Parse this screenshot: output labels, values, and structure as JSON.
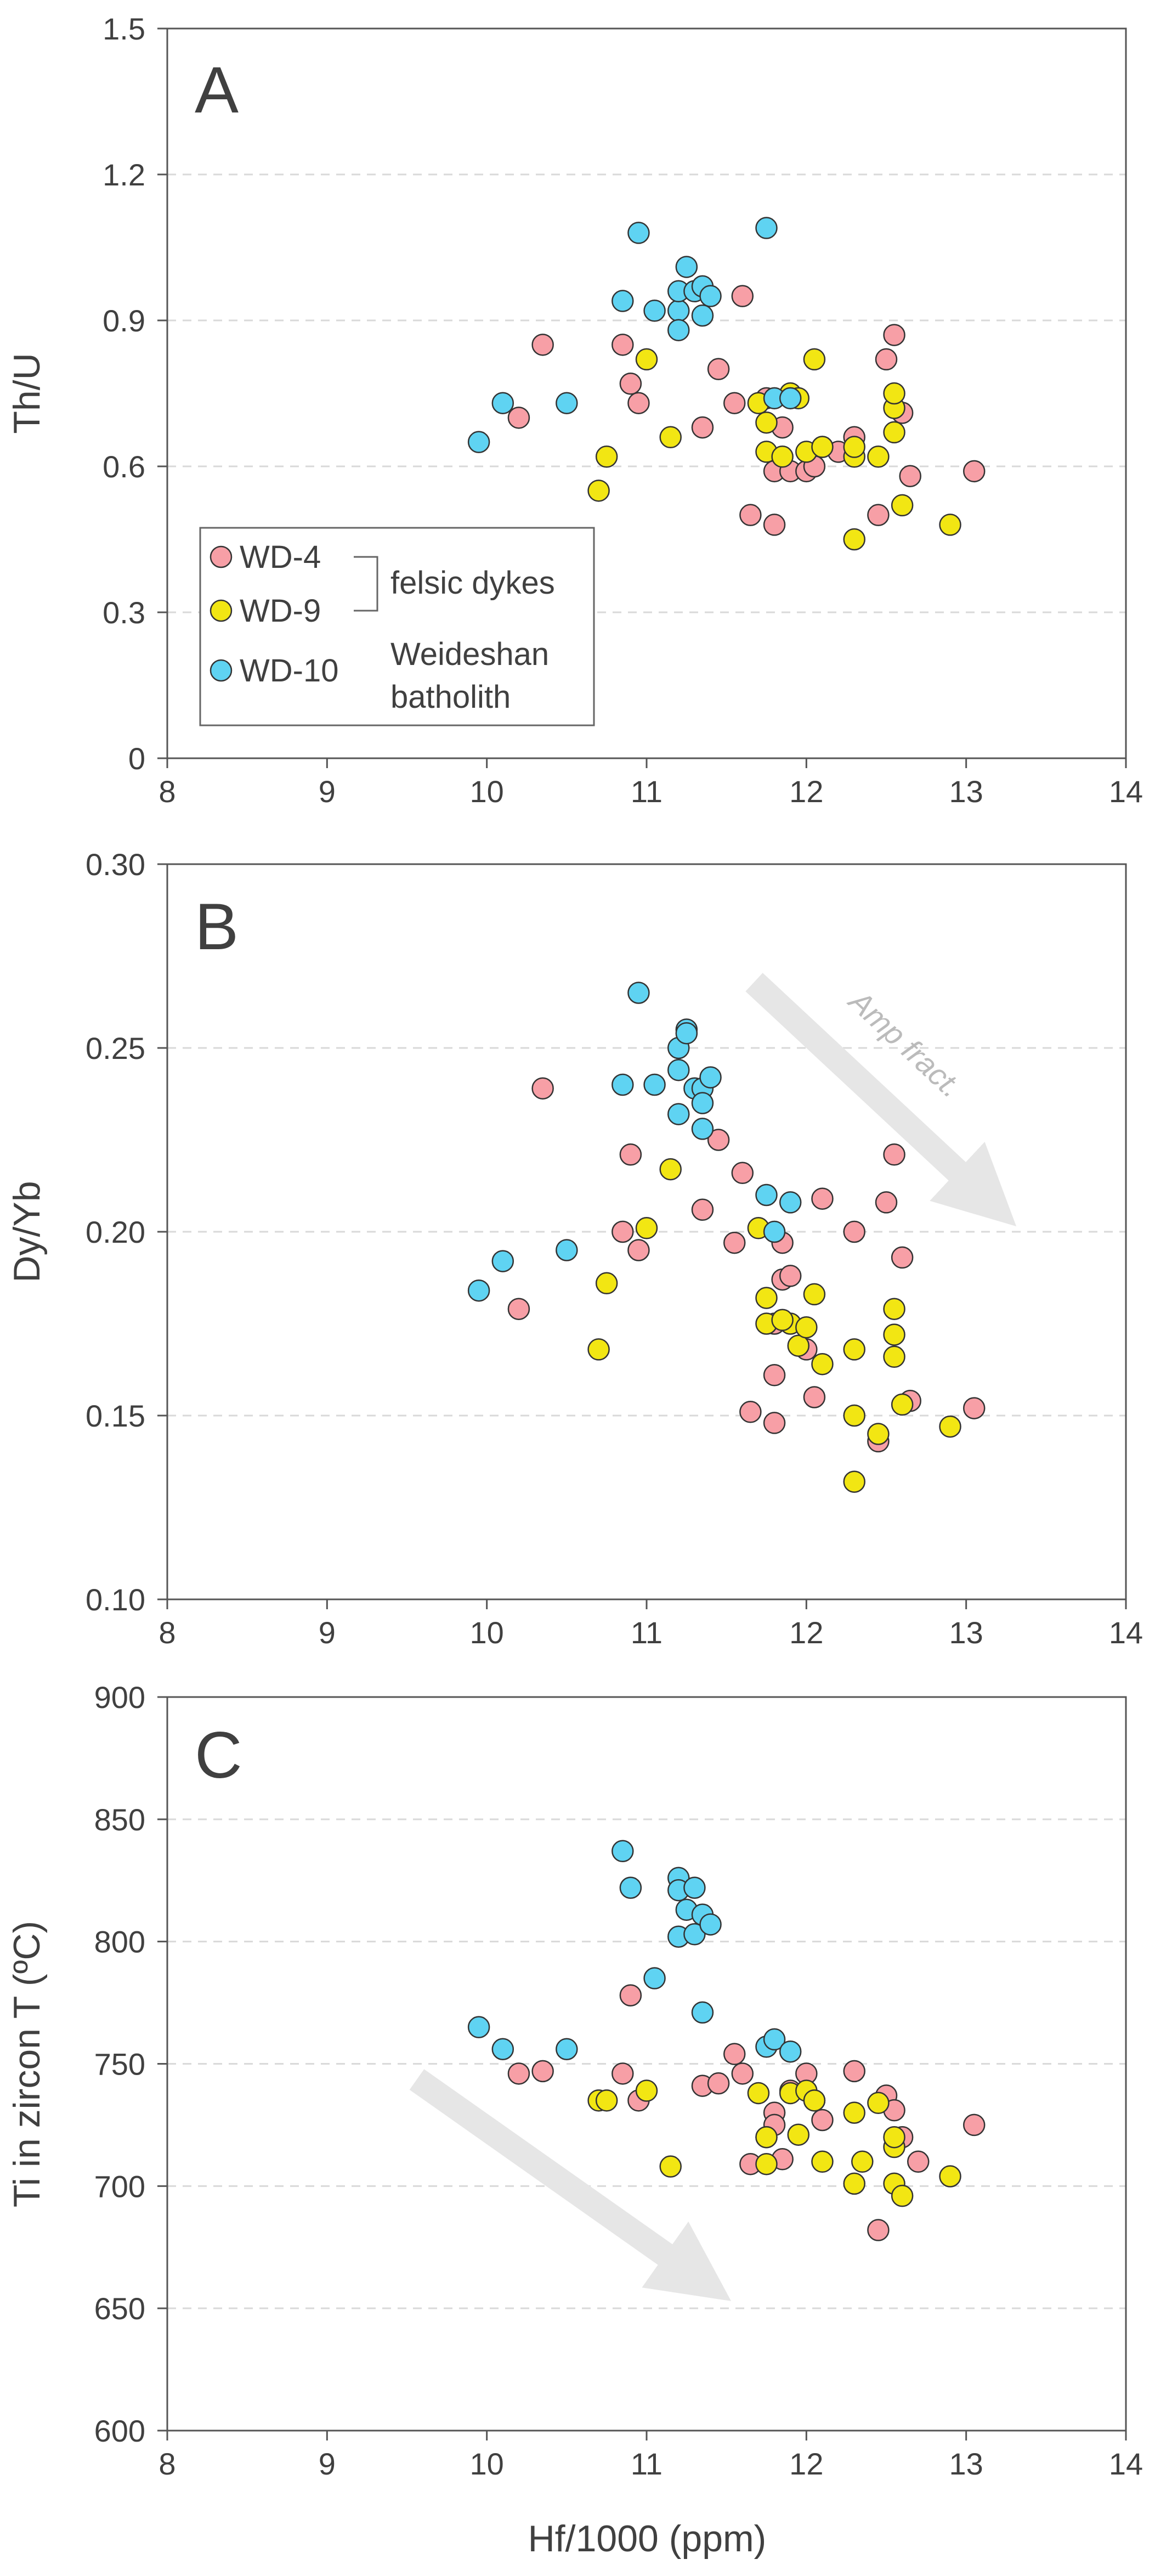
{
  "colors": {
    "WD-4": "#f79fa6",
    "WD-9": "#f2e613",
    "WD-10": "#5fd3f2",
    "frame": "#555555",
    "grid": "#d9d9d9",
    "arrow": "#e6e6e6"
  },
  "legend": {
    "wd4": "WD-4",
    "wd9": "WD-9",
    "wd10": "WD-10",
    "felsic": "felsic dykes",
    "weideshan_1": "Weideshan",
    "weideshan_2": "batholith"
  },
  "chart_data": [
    {
      "type": "scatter",
      "panel": "A",
      "ylabel": "Th/U",
      "xlim": [
        8,
        14
      ],
      "ylim": [
        0,
        1.5
      ],
      "xticks": [
        "8",
        "9",
        "10",
        "11",
        "12",
        "13",
        "14"
      ],
      "yticks": [
        "0",
        "0.3",
        "0.6",
        "0.9",
        "1.2",
        "1.5"
      ],
      "grid_y": [
        0.3,
        0.6,
        0.9,
        1.2
      ],
      "series": [
        {
          "name": "WD-4",
          "points": [
            [
              10.2,
              0.7
            ],
            [
              10.35,
              0.85
            ],
            [
              10.85,
              0.85
            ],
            [
              10.9,
              0.77
            ],
            [
              10.95,
              0.73
            ],
            [
              11.35,
              0.68
            ],
            [
              11.45,
              0.8
            ],
            [
              11.55,
              0.73
            ],
            [
              11.6,
              0.95
            ],
            [
              11.65,
              0.5
            ],
            [
              11.8,
              0.48
            ],
            [
              11.8,
              0.59
            ],
            [
              11.85,
              0.68
            ],
            [
              11.9,
              0.59
            ],
            [
              12.0,
              0.59
            ],
            [
              12.05,
              0.6
            ],
            [
              12.1,
              0.64
            ],
            [
              12.2,
              0.63
            ],
            [
              12.3,
              0.66
            ],
            [
              12.45,
              0.5
            ],
            [
              12.5,
              0.82
            ],
            [
              12.55,
              0.87
            ],
            [
              12.6,
              0.71
            ],
            [
              12.65,
              0.58
            ],
            [
              13.05,
              0.59
            ],
            [
              11.75,
              0.74
            ]
          ]
        },
        {
          "name": "WD-9",
          "points": [
            [
              10.7,
              0.55
            ],
            [
              10.75,
              0.62
            ],
            [
              11.0,
              0.82
            ],
            [
              11.15,
              0.66
            ],
            [
              11.7,
              0.73
            ],
            [
              11.75,
              0.69
            ],
            [
              11.75,
              0.63
            ],
            [
              11.85,
              0.62
            ],
            [
              11.9,
              0.75
            ],
            [
              11.95,
              0.74
            ],
            [
              12.0,
              0.63
            ],
            [
              12.05,
              0.82
            ],
            [
              12.1,
              0.64
            ],
            [
              12.3,
              0.62
            ],
            [
              12.3,
              0.64
            ],
            [
              12.3,
              0.45
            ],
            [
              12.45,
              0.62
            ],
            [
              12.55,
              0.67
            ],
            [
              12.55,
              0.72
            ],
            [
              12.55,
              0.75
            ],
            [
              12.6,
              0.52
            ],
            [
              12.9,
              0.48
            ]
          ]
        },
        {
          "name": "WD-10",
          "points": [
            [
              9.95,
              0.65
            ],
            [
              10.1,
              0.73
            ],
            [
              10.5,
              0.73
            ],
            [
              10.85,
              0.94
            ],
            [
              10.95,
              1.08
            ],
            [
              11.05,
              0.92
            ],
            [
              11.2,
              0.92
            ],
            [
              11.2,
              0.88
            ],
            [
              11.2,
              0.96
            ],
            [
              11.25,
              1.01
            ],
            [
              11.3,
              0.96
            ],
            [
              11.35,
              0.97
            ],
            [
              11.35,
              0.91
            ],
            [
              11.4,
              0.95
            ],
            [
              11.75,
              1.09
            ],
            [
              11.8,
              0.74
            ],
            [
              11.9,
              0.74
            ]
          ]
        }
      ]
    },
    {
      "type": "scatter",
      "panel": "B",
      "ylabel": "Dy/Yb",
      "xlim": [
        8,
        14
      ],
      "ylim": [
        0.1,
        0.3
      ],
      "xticks": [
        "8",
        "9",
        "10",
        "11",
        "12",
        "13",
        "14"
      ],
      "yticks": [
        "0.10",
        "0.15",
        "0.20",
        "0.25",
        "0.30"
      ],
      "grid_y": [
        0.15,
        0.2,
        0.25
      ],
      "annotation": "Amp fract.",
      "series": [
        {
          "name": "WD-4",
          "points": [
            [
              10.2,
              0.179
            ],
            [
              10.35,
              0.239
            ],
            [
              10.85,
              0.2
            ],
            [
              10.9,
              0.221
            ],
            [
              10.95,
              0.195
            ],
            [
              11.35,
              0.206
            ],
            [
              11.45,
              0.225
            ],
            [
              11.55,
              0.197
            ],
            [
              11.6,
              0.216
            ],
            [
              11.65,
              0.151
            ],
            [
              11.8,
              0.148
            ],
            [
              11.8,
              0.161
            ],
            [
              11.85,
              0.187
            ],
            [
              11.85,
              0.197
            ],
            [
              11.9,
              0.188
            ],
            [
              12.0,
              0.168
            ],
            [
              12.05,
              0.155
            ],
            [
              12.1,
              0.209
            ],
            [
              12.3,
              0.2
            ],
            [
              12.45,
              0.143
            ],
            [
              12.5,
              0.208
            ],
            [
              12.55,
              0.221
            ],
            [
              12.6,
              0.193
            ],
            [
              12.65,
              0.154
            ],
            [
              13.05,
              0.152
            ],
            [
              11.8,
              0.175
            ]
          ]
        },
        {
          "name": "WD-9",
          "points": [
            [
              10.7,
              0.168
            ],
            [
              10.75,
              0.186
            ],
            [
              11.0,
              0.201
            ],
            [
              11.15,
              0.217
            ],
            [
              11.7,
              0.201
            ],
            [
              11.75,
              0.182
            ],
            [
              11.75,
              0.175
            ],
            [
              11.9,
              0.175
            ],
            [
              11.95,
              0.169
            ],
            [
              12.0,
              0.174
            ],
            [
              12.05,
              0.183
            ],
            [
              12.1,
              0.164
            ],
            [
              12.3,
              0.168
            ],
            [
              12.3,
              0.15
            ],
            [
              12.3,
              0.132
            ],
            [
              12.45,
              0.145
            ],
            [
              12.55,
              0.179
            ],
            [
              12.55,
              0.172
            ],
            [
              12.55,
              0.166
            ],
            [
              12.6,
              0.153
            ],
            [
              12.9,
              0.147
            ],
            [
              11.85,
              0.176
            ]
          ]
        },
        {
          "name": "WD-10",
          "points": [
            [
              9.95,
              0.184
            ],
            [
              10.1,
              0.192
            ],
            [
              10.5,
              0.195
            ],
            [
              10.85,
              0.24
            ],
            [
              10.95,
              0.265
            ],
            [
              11.05,
              0.24
            ],
            [
              11.2,
              0.25
            ],
            [
              11.2,
              0.232
            ],
            [
              11.2,
              0.244
            ],
            [
              11.25,
              0.255
            ],
            [
              11.3,
              0.239
            ],
            [
              11.35,
              0.239
            ],
            [
              11.35,
              0.228
            ],
            [
              11.4,
              0.242
            ],
            [
              11.35,
              0.235
            ],
            [
              11.75,
              0.21
            ],
            [
              11.8,
              0.2
            ],
            [
              11.9,
              0.208
            ],
            [
              11.25,
              0.254
            ]
          ]
        }
      ]
    },
    {
      "type": "scatter",
      "panel": "C",
      "ylabel": "Ti in zircon T (ºC)",
      "xlabel": "Hf/1000 (ppm)",
      "xlim": [
        8,
        14
      ],
      "ylim": [
        600,
        900
      ],
      "xticks": [
        "8",
        "9",
        "10",
        "11",
        "12",
        "13",
        "14"
      ],
      "yticks": [
        "600",
        "650",
        "700",
        "750",
        "800",
        "850",
        "900"
      ],
      "grid_y": [
        650,
        700,
        750,
        800,
        850
      ],
      "series": [
        {
          "name": "WD-4",
          "points": [
            [
              10.2,
              746
            ],
            [
              10.35,
              747
            ],
            [
              10.85,
              746
            ],
            [
              10.9,
              778
            ],
            [
              10.95,
              735
            ],
            [
              11.35,
              741
            ],
            [
              11.45,
              742
            ],
            [
              11.55,
              754
            ],
            [
              11.6,
              746
            ],
            [
              11.65,
              709
            ],
            [
              11.8,
              730
            ],
            [
              11.8,
              725
            ],
            [
              11.85,
              711
            ],
            [
              11.9,
              739
            ],
            [
              12.0,
              746
            ],
            [
              12.05,
              735
            ],
            [
              12.1,
              727
            ],
            [
              12.3,
              747
            ],
            [
              12.45,
              682
            ],
            [
              12.5,
              737
            ],
            [
              12.55,
              731
            ],
            [
              12.6,
              720
            ],
            [
              12.7,
              710
            ],
            [
              13.05,
              725
            ],
            [
              11.75,
              720
            ]
          ]
        },
        {
          "name": "WD-9",
          "points": [
            [
              10.7,
              735
            ],
            [
              10.75,
              735
            ],
            [
              11.0,
              739
            ],
            [
              11.15,
              708
            ],
            [
              11.7,
              738
            ],
            [
              11.75,
              720
            ],
            [
              11.75,
              709
            ],
            [
              11.9,
              738
            ],
            [
              11.95,
              721
            ],
            [
              12.0,
              739
            ],
            [
              12.05,
              735
            ],
            [
              12.1,
              710
            ],
            [
              12.3,
              730
            ],
            [
              12.3,
              701
            ],
            [
              12.35,
              710
            ],
            [
              12.45,
              734
            ],
            [
              12.55,
              716
            ],
            [
              12.55,
              720
            ],
            [
              12.55,
              701
            ],
            [
              12.6,
              696
            ],
            [
              12.9,
              704
            ]
          ]
        },
        {
          "name": "WD-10",
          "points": [
            [
              9.95,
              765
            ],
            [
              10.1,
              756
            ],
            [
              10.5,
              756
            ],
            [
              10.85,
              837
            ],
            [
              10.9,
              822
            ],
            [
              11.05,
              785
            ],
            [
              11.2,
              826
            ],
            [
              11.2,
              821
            ],
            [
              11.2,
              802
            ],
            [
              11.25,
              813
            ],
            [
              11.3,
              822
            ],
            [
              11.3,
              803
            ],
            [
              11.35,
              811
            ],
            [
              11.4,
              807
            ],
            [
              11.35,
              771
            ],
            [
              11.75,
              757
            ],
            [
              11.8,
              760
            ],
            [
              11.9,
              755
            ]
          ]
        }
      ]
    }
  ]
}
